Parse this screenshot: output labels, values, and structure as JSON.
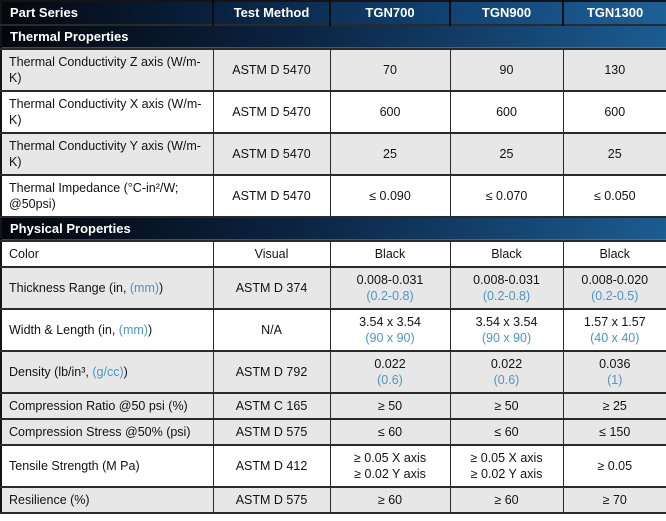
{
  "accent_color": "#4a97c4",
  "header": {
    "columns": [
      "Part Series",
      "Test Method",
      "TGN700",
      "TGN900",
      "TGN1300"
    ]
  },
  "sections": [
    {
      "title": "Thermal Properties",
      "rows": [
        {
          "shade": "gray",
          "label": [
            {
              "t": "Thermal Conductivity Z axis (W/m-K)"
            }
          ],
          "method": "ASTM D 5470",
          "values": [
            [
              {
                "t": "70"
              }
            ],
            [
              {
                "t": "90"
              }
            ],
            [
              {
                "t": "130"
              }
            ]
          ]
        },
        {
          "shade": "white",
          "label": [
            {
              "t": "Thermal Conductivity X axis (W/m-K)"
            }
          ],
          "method": "ASTM D 5470",
          "values": [
            [
              {
                "t": "600"
              }
            ],
            [
              {
                "t": "600"
              }
            ],
            [
              {
                "t": "600"
              }
            ]
          ]
        },
        {
          "shade": "gray",
          "label": [
            {
              "t": "Thermal Conductivity Y axis (W/m-K)"
            }
          ],
          "method": "ASTM D 5470",
          "values": [
            [
              {
                "t": "25"
              }
            ],
            [
              {
                "t": "25"
              }
            ],
            [
              {
                "t": "25"
              }
            ]
          ]
        },
        {
          "shade": "white",
          "label": [
            {
              "t": "Thermal Impedance (°C-in²/W; @50psi)"
            }
          ],
          "method": "ASTM D 5470",
          "values": [
            [
              {
                "t": "≤ 0.090"
              }
            ],
            [
              {
                "t": "≤ 0.070"
              }
            ],
            [
              {
                "t": "≤ 0.050"
              }
            ]
          ]
        }
      ]
    },
    {
      "title": "Physical Properties",
      "rows": [
        {
          "shade": "white",
          "label": [
            {
              "t": "Color"
            }
          ],
          "method": "Visual",
          "values": [
            [
              {
                "t": "Black"
              }
            ],
            [
              {
                "t": "Black"
              }
            ],
            [
              {
                "t": "Black"
              }
            ]
          ]
        },
        {
          "shade": "gray",
          "label": [
            {
              "t": "Thickness Range (in, "
            },
            {
              "t": "(mm)",
              "accent": true
            },
            {
              "t": ")"
            }
          ],
          "method": "ASTM D 374",
          "values": [
            [
              {
                "t": "0.008-0.031"
              },
              {
                "t": "(0.2-0.8)",
                "accent": true
              }
            ],
            [
              {
                "t": "0.008-0.031"
              },
              {
                "t": "(0.2-0.8)",
                "accent": true
              }
            ],
            [
              {
                "t": "0.008-0.020"
              },
              {
                "t": "(0.2-0.5)",
                "accent": true
              }
            ]
          ]
        },
        {
          "shade": "white",
          "label": [
            {
              "t": "Width & Length (in, "
            },
            {
              "t": "(mm)",
              "accent": true
            },
            {
              "t": ")"
            }
          ],
          "method": "N/A",
          "values": [
            [
              {
                "t": "3.54 x 3.54"
              },
              {
                "t": "(90 x 90)",
                "accent": true
              }
            ],
            [
              {
                "t": "3.54 x 3.54"
              },
              {
                "t": "(90 x 90)",
                "accent": true
              }
            ],
            [
              {
                "t": "1.57 x 1.57"
              },
              {
                "t": "(40 x 40)",
                "accent": true
              }
            ]
          ]
        },
        {
          "shade": "gray",
          "label": [
            {
              "t": "Density (lb/in³, "
            },
            {
              "t": "(g/cc)",
              "accent": true
            },
            {
              "t": ")"
            }
          ],
          "method": "ASTM D 792",
          "values": [
            [
              {
                "t": "0.022"
              },
              {
                "t": "(0.6)",
                "accent": true
              }
            ],
            [
              {
                "t": "0.022"
              },
              {
                "t": "(0.6)",
                "accent": true
              }
            ],
            [
              {
                "t": "0.036"
              },
              {
                "t": "(1)",
                "accent": true
              }
            ]
          ]
        },
        {
          "shade": "gray",
          "label": [
            {
              "t": "Compression Ratio @50 psi (%)"
            }
          ],
          "method": "ASTM C 165",
          "values": [
            [
              {
                "t": "≥ 50"
              }
            ],
            [
              {
                "t": "≥ 50"
              }
            ],
            [
              {
                "t": "≥ 25"
              }
            ]
          ]
        },
        {
          "shade": "gray",
          "label": [
            {
              "t": "Compression Stress @50% (psi)"
            }
          ],
          "method": "ASTM D 575",
          "values": [
            [
              {
                "t": "≤ 60"
              }
            ],
            [
              {
                "t": "≤ 60"
              }
            ],
            [
              {
                "t": "≤ 150"
              }
            ]
          ]
        },
        {
          "shade": "white",
          "label": [
            {
              "t": "Tensile Strength (M Pa)"
            }
          ],
          "method": "ASTM D 412",
          "values": [
            [
              {
                "t": "≥ 0.05 X axis"
              },
              {
                "t": "≥ 0.02 Y axis"
              }
            ],
            [
              {
                "t": "≥ 0.05 X axis"
              },
              {
                "t": "≥ 0.02 Y axis"
              }
            ],
            [
              {
                "t": "≥ 0.05"
              }
            ]
          ]
        },
        {
          "shade": "gray",
          "label": [
            {
              "t": "Resilience (%)"
            }
          ],
          "method": "ASTM D 575",
          "values": [
            [
              {
                "t": "≥ 60"
              }
            ],
            [
              {
                "t": "≥ 60"
              }
            ],
            [
              {
                "t": "≥ 70"
              }
            ]
          ]
        }
      ]
    }
  ]
}
